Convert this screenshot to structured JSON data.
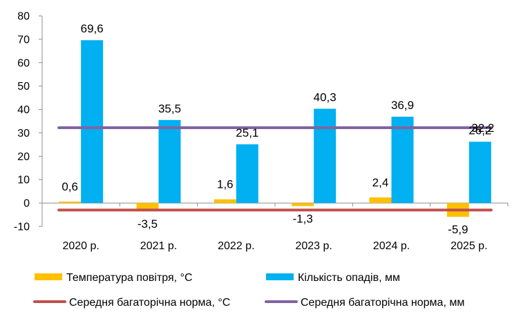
{
  "chart_data": {
    "type": "bar",
    "categories": [
      "2020 р.",
      "2021 р.",
      "2022 р.",
      "2023 р.",
      "2024 р.",
      "2025 р."
    ],
    "series": [
      {
        "name": "Температура повітря, °С",
        "kind": "bar",
        "color": "#FFC000",
        "values": [
          0.6,
          -3.5,
          1.6,
          -1.3,
          2.4,
          -5.9
        ],
        "labels": [
          "0,6",
          "-3,5",
          "1,6",
          "-1,3",
          "2,4",
          "-5,9"
        ]
      },
      {
        "name": "Кількість опадів, мм",
        "kind": "bar",
        "color": "#00B0F0",
        "values": [
          69.6,
          35.5,
          25.1,
          40.3,
          36.9,
          26.2
        ],
        "labels": [
          "69,6",
          "35,5",
          "25,1",
          "40,3",
          "36,9",
          "26,2"
        ]
      },
      {
        "name": "Середня багаторічна норма, °С",
        "kind": "line",
        "color": "#C0504D",
        "values": [
          -3,
          -3,
          -3,
          -3,
          -3,
          -3
        ]
      },
      {
        "name": "Середня багаторічна норма, мм",
        "kind": "line",
        "color": "#8064A2",
        "values": [
          32.2,
          32.2,
          32.2,
          32.2,
          32.2,
          32.2
        ]
      }
    ],
    "extra_labels": [
      {
        "category_index": 5,
        "text": "32,2"
      }
    ],
    "yticks": [
      "-10",
      "0",
      "10",
      "20",
      "30",
      "40",
      "50",
      "60",
      "70",
      "80"
    ],
    "ylim": [
      -10,
      80
    ],
    "title": "",
    "xlabel": "",
    "ylabel": "",
    "grid": false,
    "legend_position": "bottom"
  }
}
